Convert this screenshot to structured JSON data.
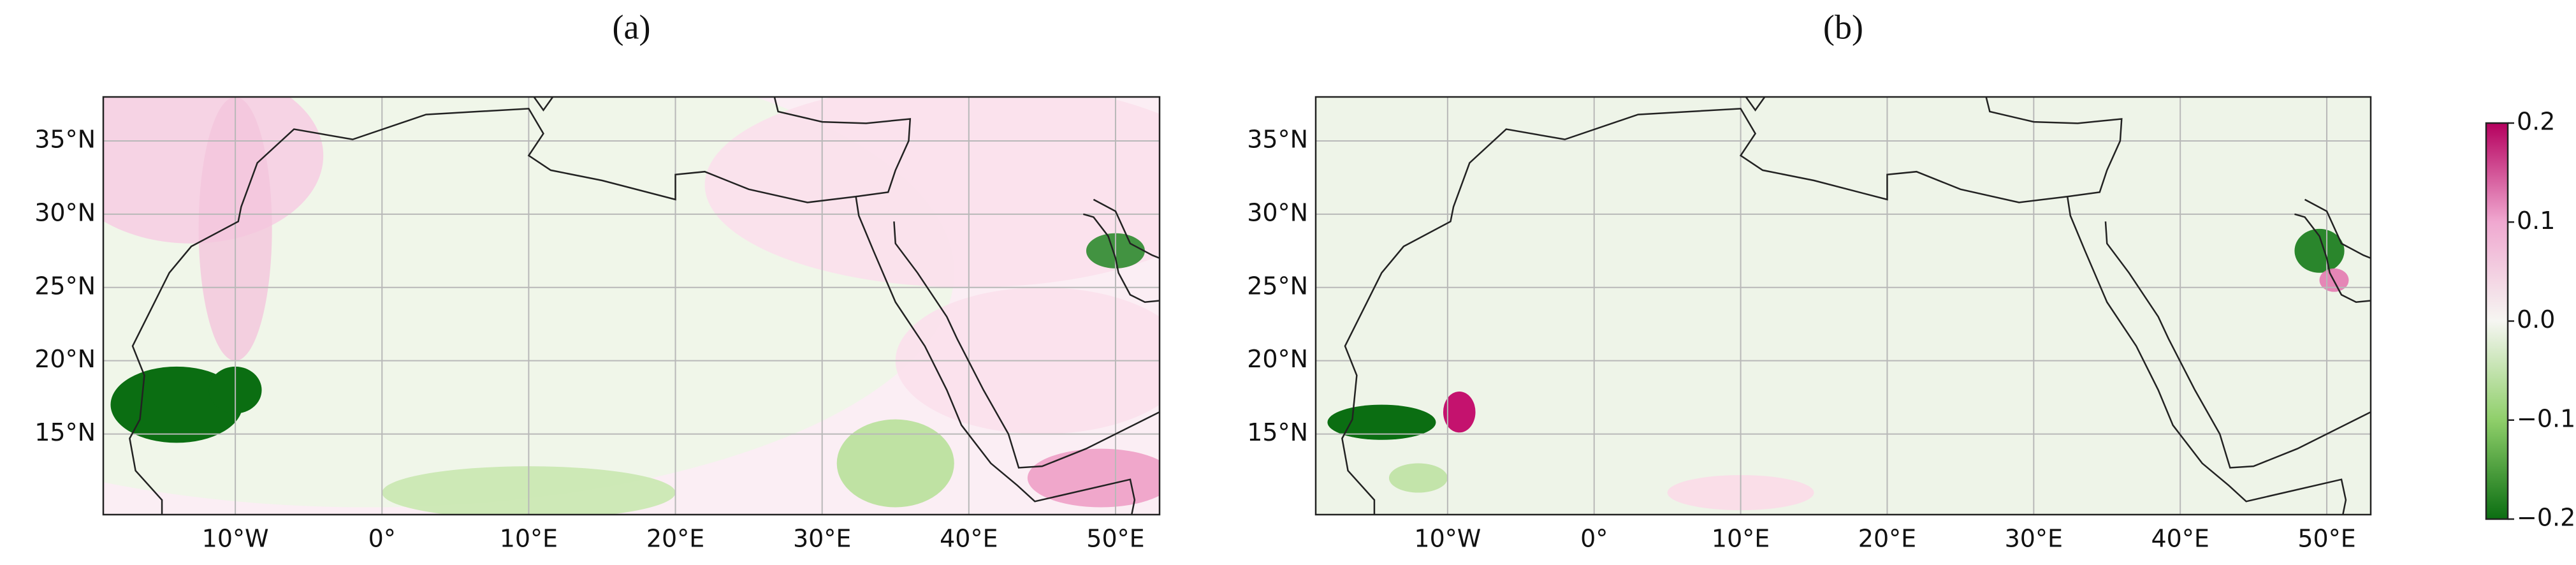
{
  "panels": [
    {
      "label": "(a)",
      "xlim": [
        -19,
        53
      ],
      "ylim": [
        9.5,
        38
      ],
      "xticks": [
        {
          "value": -10,
          "label": "10°W"
        },
        {
          "value": 0,
          "label": "0°"
        },
        {
          "value": 10,
          "label": "10°E"
        },
        {
          "value": 20,
          "label": "20°E"
        },
        {
          "value": 30,
          "label": "30°E"
        },
        {
          "value": 40,
          "label": "40°E"
        },
        {
          "value": 50,
          "label": "50°E"
        }
      ],
      "yticks": [
        {
          "value": 15,
          "label": "15°N"
        },
        {
          "value": 20,
          "label": "20°N"
        },
        {
          "value": 25,
          "label": "25°N"
        },
        {
          "value": 30,
          "label": "30°N"
        },
        {
          "value": 35,
          "label": "35°N"
        }
      ]
    },
    {
      "label": "(b)",
      "xlim": [
        -19,
        53
      ],
      "ylim": [
        9.5,
        38
      ],
      "xticks": [
        {
          "value": -10,
          "label": "10°W"
        },
        {
          "value": 0,
          "label": "0°"
        },
        {
          "value": 10,
          "label": "10°E"
        },
        {
          "value": 20,
          "label": "20°E"
        },
        {
          "value": 30,
          "label": "30°E"
        },
        {
          "value": 40,
          "label": "40°E"
        },
        {
          "value": 50,
          "label": "50°E"
        }
      ],
      "yticks": [
        {
          "value": 15,
          "label": "15°N"
        },
        {
          "value": 20,
          "label": "20°N"
        },
        {
          "value": 25,
          "label": "25°N"
        },
        {
          "value": 30,
          "label": "30°N"
        },
        {
          "value": 35,
          "label": "35°N"
        }
      ]
    }
  ],
  "colorbar": {
    "lim": [
      -0.2,
      0.2
    ],
    "ticks": [
      {
        "value": -0.2,
        "label": "−0.2"
      },
      {
        "value": -0.1,
        "label": "−0.1"
      },
      {
        "value": 0,
        "label": "0.0"
      },
      0.1,
      0.2
    ]
  }
}
